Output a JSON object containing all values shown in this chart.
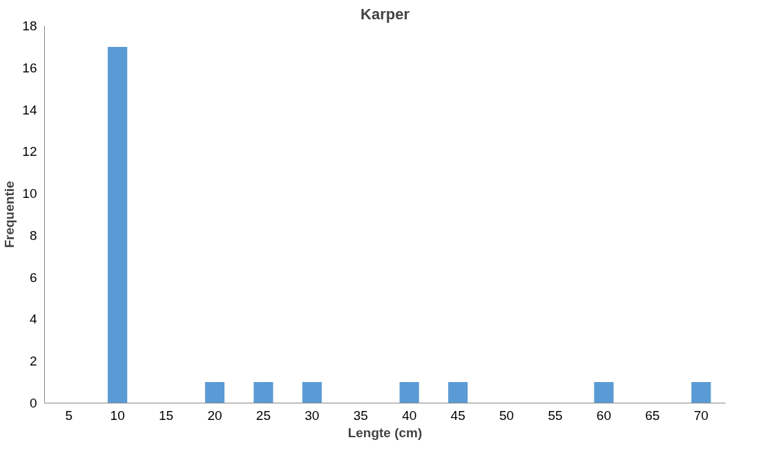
{
  "chart_data": {
    "type": "bar",
    "title": "Karper",
    "xlabel": "Lengte (cm)",
    "ylabel": "Frequentie",
    "categories": [
      "5",
      "10",
      "15",
      "20",
      "25",
      "30",
      "35",
      "40",
      "45",
      "50",
      "55",
      "60",
      "65",
      "70"
    ],
    "values": [
      0,
      17,
      0,
      1,
      1,
      1,
      0,
      1,
      1,
      0,
      0,
      1,
      0,
      1
    ],
    "color": "#5b9bd5",
    "ylim": [
      0,
      18
    ],
    "yticks": [
      0,
      2,
      4,
      6,
      8,
      10,
      12,
      14,
      16,
      18
    ],
    "grid": false
  }
}
